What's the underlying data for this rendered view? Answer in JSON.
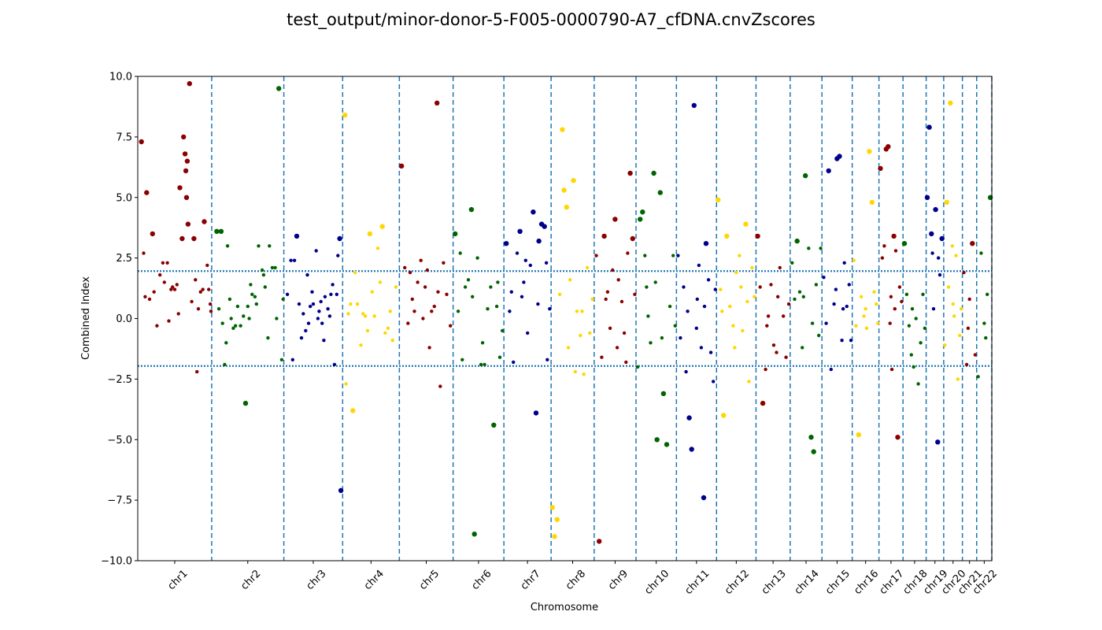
{
  "chart_data": {
    "type": "scatter",
    "title": "test_output/minor-donor-5-F005-0000790-A7_cfDNA.cnvZscores",
    "xlabel": "Chromosome",
    "ylabel": "Combined Index",
    "ylim": [
      -10,
      10
    ],
    "y_ticks": [
      "−10.0",
      "−7.5",
      "−5.0",
      "−2.5",
      "0.0",
      "2.5",
      "5.0",
      "7.5",
      "10.0"
    ],
    "y_tick_values": [
      -10,
      -7.5,
      -5,
      -2.5,
      0,
      2.5,
      5,
      7.5,
      10
    ],
    "threshold_lines": [
      1.96,
      -1.96
    ],
    "grid": false,
    "colors": {
      "series_cycle": [
        "#8b0000",
        "#006400",
        "#00008b",
        "#ffd700"
      ],
      "boundary": "#1f77b4",
      "threshold": "#1f77b4"
    },
    "chromosomes": [
      {
        "name": "chr1",
        "size": 249
      },
      {
        "name": "chr2",
        "size": 243
      },
      {
        "name": "chr3",
        "size": 198
      },
      {
        "name": "chr4",
        "size": 191
      },
      {
        "name": "chr5",
        "size": 181
      },
      {
        "name": "chr6",
        "size": 171
      },
      {
        "name": "chr7",
        "size": 159
      },
      {
        "name": "chr8",
        "size": 145
      },
      {
        "name": "chr9",
        "size": 141
      },
      {
        "name": "chr10",
        "size": 136
      },
      {
        "name": "chr11",
        "size": 135
      },
      {
        "name": "chr12",
        "size": 133
      },
      {
        "name": "chr13",
        "size": 115
      },
      {
        "name": "chr14",
        "size": 107
      },
      {
        "name": "chr15",
        "size": 102
      },
      {
        "name": "chr16",
        "size": 90
      },
      {
        "name": "chr17",
        "size": 81
      },
      {
        "name": "chr18",
        "size": 78
      },
      {
        "name": "chr19",
        "size": 59
      },
      {
        "name": "chr20",
        "size": 63
      },
      {
        "name": "chr21",
        "size": 48
      },
      {
        "name": "chr22",
        "size": 51
      }
    ],
    "points": [
      {
        "chr": "chr1",
        "pos": [
          0.05,
          0.12,
          0.2,
          0.3,
          0.34,
          0.45,
          0.47,
          0.53,
          0.57,
          0.6,
          0.62,
          0.64,
          0.65,
          0.66,
          0.67,
          0.68,
          0.73,
          0.76,
          0.8,
          0.85,
          0.88,
          0.9,
          0.94,
          0.96,
          0.98,
          0.99,
          0.1,
          0.22,
          0.4,
          0.5,
          0.7,
          0.16,
          0.26,
          0.36,
          0.42,
          0.55,
          0.78,
          0.82,
          0.08
        ],
        "y": [
          7.3,
          5.2,
          3.5,
          1.8,
          2.3,
          1.2,
          1.3,
          1.4,
          5.4,
          3.3,
          7.5,
          6.8,
          6.1,
          5.0,
          6.5,
          3.9,
          0.7,
          3.3,
          -2.2,
          1.1,
          1.2,
          4.0,
          2.2,
          1.2,
          0.6,
          0.3,
          0.9,
          1.1,
          2.3,
          1.2,
          9.7,
          0.8,
          -0.3,
          1.5,
          -0.1,
          0.2,
          1.6,
          0.4,
          2.7
        ]
      },
      {
        "chr": "chr2",
        "pos": [
          0.07,
          0.13,
          0.18,
          0.22,
          0.27,
          0.3,
          0.36,
          0.4,
          0.47,
          0.52,
          0.56,
          0.6,
          0.65,
          0.7,
          0.74,
          0.8,
          0.88,
          0.93,
          0.97,
          0.99,
          0.1,
          0.2,
          0.33,
          0.44,
          0.54,
          0.62,
          0.72,
          0.84,
          0.9,
          0.15,
          0.25,
          0.5,
          0.78
        ],
        "y": [
          3.6,
          3.6,
          -1.9,
          3.0,
          0.0,
          -0.4,
          0.5,
          -0.3,
          -3.5,
          0.0,
          1.0,
          0.9,
          3.0,
          2.0,
          1.3,
          3.0,
          2.1,
          9.5,
          -1.7,
          0.8,
          0.4,
          -1.0,
          -0.3,
          0.1,
          1.4,
          0.6,
          1.8,
          2.1,
          0.0,
          -0.2,
          0.8,
          0.5,
          -0.8
        ]
      },
      {
        "chr": "chr3",
        "pos": [
          0.06,
          0.12,
          0.18,
          0.22,
          0.26,
          0.33,
          0.4,
          0.45,
          0.5,
          0.55,
          0.6,
          0.65,
          0.7,
          0.78,
          0.86,
          0.9,
          0.95,
          0.97,
          0.3,
          0.37,
          0.48,
          0.58,
          0.68,
          0.75,
          0.83,
          0.15,
          0.42,
          0.63,
          0.8,
          0.92
        ],
        "y": [
          1.0,
          2.4,
          2.4,
          3.4,
          0.6,
          0.2,
          1.8,
          0.5,
          0.6,
          2.8,
          0.3,
          -0.2,
          0.9,
          0.1,
          -1.9,
          1.0,
          3.3,
          -7.1,
          -0.8,
          -0.5,
          1.1,
          0.0,
          -0.9,
          0.4,
          1.4,
          -1.7,
          -0.2,
          0.7,
          1.0,
          2.6
        ]
      },
      {
        "chr": "chr4",
        "pos": [
          0.04,
          0.1,
          0.18,
          0.26,
          0.32,
          0.4,
          0.48,
          0.56,
          0.62,
          0.7,
          0.8,
          0.88,
          0.94,
          0.14,
          0.22,
          0.36,
          0.44,
          0.52,
          0.66,
          0.75,
          0.84,
          0.06
        ],
        "y": [
          8.4,
          0.2,
          -3.8,
          0.6,
          -1.1,
          0.1,
          3.5,
          0.1,
          2.9,
          3.8,
          -0.4,
          -0.9,
          1.3,
          0.6,
          1.9,
          0.2,
          -0.5,
          1.1,
          1.5,
          -0.6,
          0.3,
          -2.7
        ]
      },
      {
        "chr": "chr5",
        "pos": [
          0.04,
          0.1,
          0.16,
          0.2,
          0.28,
          0.34,
          0.4,
          0.48,
          0.56,
          0.6,
          0.65,
          0.7,
          0.76,
          0.82,
          0.88,
          0.95,
          0.24,
          0.44,
          0.52,
          0.72
        ],
        "y": [
          6.3,
          2.1,
          -0.2,
          1.9,
          0.3,
          1.5,
          2.4,
          1.3,
          -1.2,
          0.3,
          0.5,
          8.9,
          -2.8,
          2.3,
          1.0,
          -0.3,
          0.8,
          0.0,
          2.0,
          1.1
        ]
      },
      {
        "chr": "chr6",
        "pos": [
          0.04,
          0.1,
          0.18,
          0.24,
          0.3,
          0.36,
          0.42,
          0.48,
          0.55,
          0.62,
          0.68,
          0.74,
          0.8,
          0.86,
          0.92,
          0.97,
          0.14,
          0.38,
          0.58,
          0.88
        ],
        "y": [
          3.5,
          0.3,
          -1.7,
          1.3,
          1.6,
          4.5,
          -8.9,
          2.5,
          -1.9,
          -1.9,
          0.4,
          1.3,
          -4.4,
          0.5,
          -1.6,
          -0.5,
          2.7,
          0.9,
          -1.0,
          1.5
        ]
      },
      {
        "chr": "chr7",
        "pos": [
          0.05,
          0.12,
          0.2,
          0.28,
          0.34,
          0.42,
          0.5,
          0.56,
          0.62,
          0.68,
          0.74,
          0.8,
          0.86,
          0.92,
          0.97,
          0.16,
          0.38,
          0.46,
          0.72,
          0.9
        ],
        "y": [
          3.1,
          0.3,
          -1.8,
          2.7,
          3.6,
          1.5,
          -0.6,
          2.2,
          4.4,
          -3.9,
          3.2,
          3.9,
          3.8,
          -1.7,
          0.4,
          1.1,
          0.9,
          2.4,
          0.6,
          2.3
        ]
      },
      {
        "chr": "chr8",
        "pos": [
          0.03,
          0.08,
          0.14,
          0.2,
          0.26,
          0.3,
          0.36,
          0.44,
          0.52,
          0.6,
          0.68,
          0.76,
          0.84,
          0.9,
          0.96,
          0.4,
          0.56,
          0.72
        ],
        "y": [
          -7.8,
          -9.0,
          -8.3,
          1.0,
          7.8,
          5.3,
          4.6,
          1.6,
          5.7,
          0.3,
          -0.7,
          -2.3,
          2.1,
          -0.6,
          0.8,
          -1.2,
          -2.2,
          0.3
        ]
      },
      {
        "chr": "chr9",
        "pos": [
          0.05,
          0.12,
          0.18,
          0.24,
          0.32,
          0.38,
          0.44,
          0.5,
          0.58,
          0.66,
          0.72,
          0.8,
          0.86,
          0.92,
          0.97,
          0.28,
          0.55,
          0.76
        ],
        "y": [
          2.6,
          -9.2,
          -1.6,
          3.4,
          1.1,
          -0.4,
          2.0,
          4.1,
          1.6,
          0.7,
          -0.6,
          2.7,
          6.0,
          3.3,
          1.0,
          0.8,
          -1.2,
          -1.8
        ]
      },
      {
        "chr": "chr10",
        "pos": [
          0.04,
          0.1,
          0.16,
          0.22,
          0.3,
          0.36,
          0.44,
          0.52,
          0.6,
          0.68,
          0.76,
          0.84,
          0.92,
          0.97,
          0.26,
          0.48,
          0.64
        ],
        "y": [
          -2.0,
          4.1,
          4.4,
          2.6,
          0.1,
          -1.0,
          6.0,
          -5.0,
          5.2,
          -3.1,
          -5.2,
          0.5,
          2.6,
          -0.3,
          1.3,
          1.5,
          -0.8
        ]
      },
      {
        "chr": "chr11",
        "pos": [
          0.04,
          0.1,
          0.18,
          0.24,
          0.32,
          0.38,
          0.44,
          0.5,
          0.56,
          0.62,
          0.68,
          0.74,
          0.8,
          0.86,
          0.92,
          0.97,
          0.28,
          0.52,
          0.7
        ],
        "y": [
          2.6,
          -0.8,
          1.3,
          -2.2,
          -4.1,
          -5.4,
          8.8,
          -0.4,
          2.2,
          -1.2,
          -7.4,
          3.1,
          1.6,
          -1.4,
          -2.6,
          1.2,
          0.3,
          0.8,
          0.5
        ]
      },
      {
        "chr": "chr12",
        "pos": [
          0.04,
          0.1,
          0.18,
          0.26,
          0.34,
          0.42,
          0.5,
          0.58,
          0.66,
          0.74,
          0.82,
          0.9,
          0.96,
          0.14,
          0.46,
          0.62,
          0.78
        ],
        "y": [
          4.9,
          1.2,
          -4.0,
          3.4,
          0.5,
          -0.3,
          1.9,
          2.6,
          -0.5,
          3.9,
          -2.6,
          2.1,
          0.9,
          0.3,
          -1.2,
          1.3,
          0.7
        ]
      },
      {
        "chr": "chr13",
        "pos": [
          0.05,
          0.12,
          0.2,
          0.28,
          0.36,
          0.44,
          0.52,
          0.6,
          0.7,
          0.8,
          0.88,
          0.96,
          0.32,
          0.64
        ],
        "y": [
          3.4,
          1.3,
          -3.5,
          -2.1,
          0.1,
          1.4,
          -1.1,
          -1.4,
          2.1,
          0.1,
          -1.6,
          0.6,
          -0.3,
          0.9
        ]
      },
      {
        "chr": "chr14",
        "pos": [
          0.06,
          0.14,
          0.22,
          0.3,
          0.38,
          0.48,
          0.58,
          0.66,
          0.74,
          0.82,
          0.9,
          0.96,
          0.42,
          0.7
        ],
        "y": [
          2.3,
          0.8,
          3.2,
          1.1,
          -1.2,
          5.9,
          2.9,
          -4.9,
          -5.5,
          1.4,
          -0.7,
          2.9,
          0.9,
          -0.2
        ]
      },
      {
        "chr": "chr15",
        "pos": [
          0.06,
          0.14,
          0.22,
          0.3,
          0.4,
          0.5,
          0.58,
          0.66,
          0.74,
          0.82,
          0.9,
          0.96,
          0.46,
          0.7
        ],
        "y": [
          1.7,
          -0.2,
          6.1,
          -2.1,
          0.6,
          6.6,
          6.7,
          -0.9,
          2.3,
          0.5,
          1.4,
          -0.9,
          1.2,
          0.4
        ]
      },
      {
        "chr": "chr16",
        "pos": [
          0.06,
          0.14,
          0.24,
          0.34,
          0.44,
          0.54,
          0.64,
          0.74,
          0.82,
          0.9,
          0.96,
          0.5
        ],
        "y": [
          2.4,
          -0.3,
          -4.8,
          0.9,
          0.1,
          -0.4,
          6.9,
          4.8,
          1.1,
          0.6,
          -0.2,
          0.4
        ]
      },
      {
        "chr": "chr17",
        "pos": [
          0.06,
          0.14,
          0.22,
          0.3,
          0.38,
          0.46,
          0.54,
          0.62,
          0.7,
          0.78,
          0.86,
          0.94,
          0.5,
          0.66
        ],
        "y": [
          6.2,
          2.5,
          3.0,
          7.0,
          7.1,
          -0.2,
          -2.1,
          3.4,
          2.8,
          -4.9,
          1.3,
          0.7,
          0.9,
          0.4
        ]
      },
      {
        "chr": "chr18",
        "pos": [
          0.06,
          0.16,
          0.26,
          0.36,
          0.46,
          0.56,
          0.66,
          0.76,
          0.86,
          0.94,
          0.4
        ],
        "y": [
          3.1,
          1.0,
          -0.3,
          -1.5,
          -2.0,
          0.0,
          -2.7,
          -1.0,
          1.0,
          -0.4,
          0.4
        ]
      },
      {
        "chr": "chr19",
        "pos": [
          0.06,
          0.18,
          0.3,
          0.42,
          0.54,
          0.66,
          0.78,
          0.9,
          0.36,
          0.7
        ],
        "y": [
          5.0,
          7.9,
          3.5,
          0.4,
          4.5,
          -5.1,
          1.8,
          3.3,
          2.7,
          2.5
        ]
      },
      {
        "chr": "chr20",
        "pos": [
          0.06,
          0.16,
          0.26,
          0.36,
          0.46,
          0.56,
          0.66,
          0.76,
          0.86,
          0.94,
          0.5
        ],
        "y": [
          -1.1,
          4.8,
          1.3,
          8.9,
          3.0,
          0.1,
          2.6,
          -2.5,
          -0.7,
          0.4,
          0.6
        ]
      },
      {
        "chr": "chr21",
        "pos": [
          0.1,
          0.3,
          0.5,
          0.7,
          0.9,
          0.4
        ],
        "y": [
          1.9,
          -1.9,
          0.8,
          3.1,
          -1.5,
          -0.4
        ]
      },
      {
        "chr": "chr22",
        "pos": [
          0.1,
          0.3,
          0.5,
          0.7,
          0.9,
          0.6
        ],
        "y": [
          -2.4,
          2.7,
          -0.2,
          1.0,
          5.0,
          -0.8
        ]
      }
    ]
  }
}
